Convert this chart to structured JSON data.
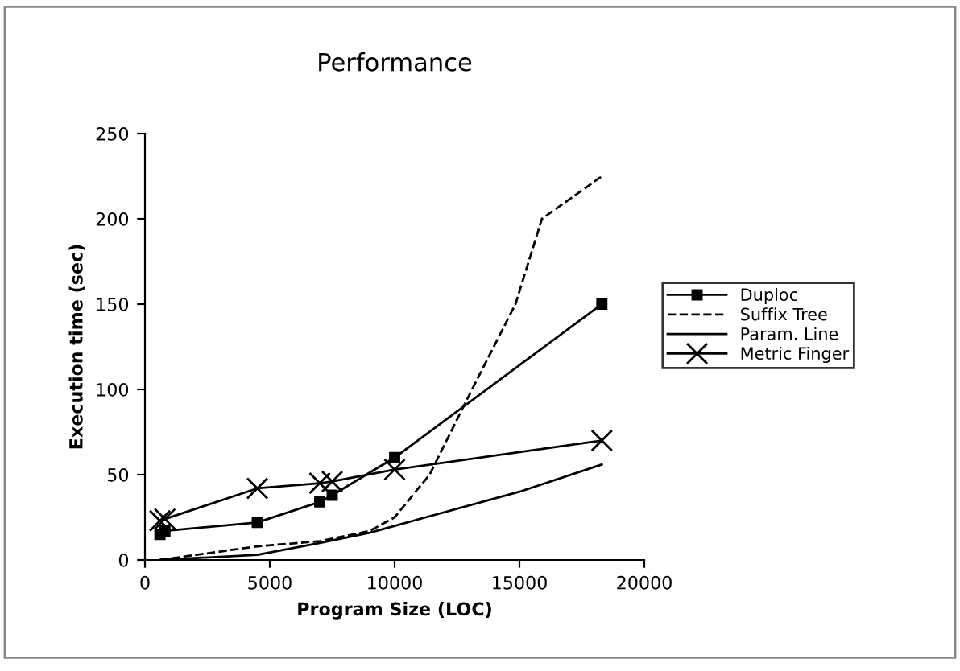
{
  "chart_data": {
    "type": "line",
    "title": "Performance",
    "xlabel": "Program Size (LOC)",
    "ylabel": "Execution time (sec)",
    "xlim": [
      0,
      20000
    ],
    "xticks": [
      0,
      5000,
      10000,
      15000,
      20000
    ],
    "ylim": [
      0,
      250
    ],
    "yticks": [
      0,
      50,
      100,
      150,
      200,
      250
    ],
    "grid": false,
    "legend": "right",
    "series": [
      {
        "name": "Duploc",
        "color": "#000000",
        "marker": "square",
        "line_style": "solid",
        "x": [
          600,
          800,
          4500,
          7000,
          7500,
          10000,
          18300
        ],
        "values": [
          15,
          17,
          22,
          34,
          38,
          60,
          150
        ]
      },
      {
        "name": "Suffix Tree",
        "color": "#000000",
        "marker": "none",
        "line_style": "dashed",
        "x": [
          600,
          4500,
          7000,
          9000,
          10000,
          11400,
          13100,
          14840,
          15900,
          18300
        ],
        "values": [
          0,
          8,
          11,
          17,
          25,
          50,
          100,
          150,
          200,
          225
        ]
      },
      {
        "name": "Param. Line",
        "color": "#000000",
        "marker": "none",
        "line_style": "solid",
        "x": [
          600,
          4500,
          7000,
          9000,
          10000,
          15000,
          18300
        ],
        "values": [
          0,
          3,
          10,
          16,
          20,
          40,
          56
        ]
      },
      {
        "name": "Metric Finger",
        "color": "#000000",
        "marker": "cross",
        "line_style": "solid",
        "x": [
          600,
          800,
          4500,
          7000,
          7500,
          10000,
          18300
        ],
        "values": [
          23,
          24,
          42,
          45,
          46,
          53,
          70
        ]
      }
    ]
  }
}
